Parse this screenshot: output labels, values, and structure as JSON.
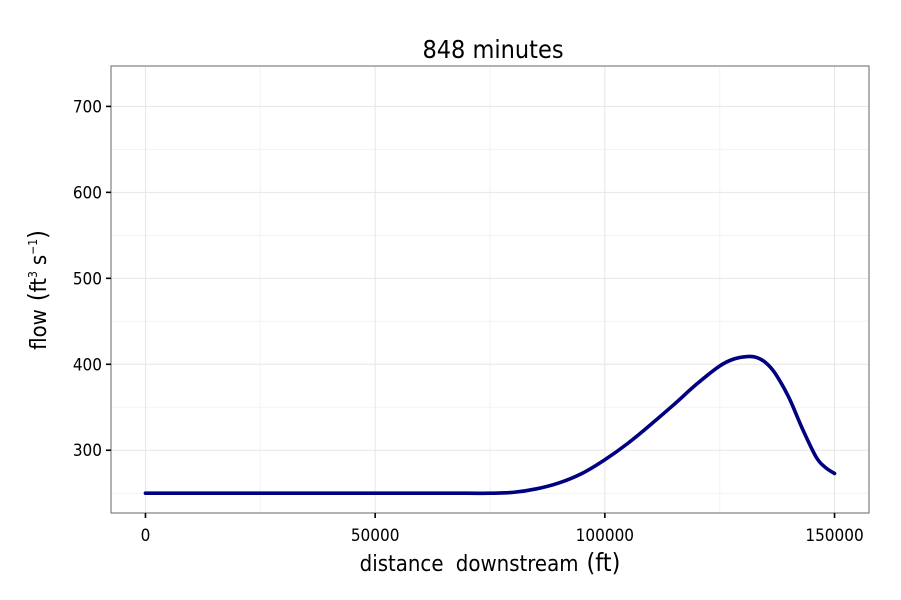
{
  "chart_data": {
    "type": "line",
    "title": "848 minutes",
    "xlabel_main": "distance downstream",
    "xlabel_unit": "(ft)",
    "ylabel_main": "flow",
    "ylabel_unit_base1": "ft",
    "ylabel_unit_exp1": "3",
    "ylabel_unit_base2": "s",
    "ylabel_unit_exp2": "−1",
    "xlim": [
      -7500,
      157500
    ],
    "ylim": [
      227,
      747
    ],
    "x_ticks": [
      0,
      50000,
      100000,
      150000
    ],
    "x_tick_labels": [
      "0",
      "50000",
      "100000",
      "150000"
    ],
    "y_ticks": [
      300,
      400,
      500,
      600,
      700
    ],
    "y_tick_labels": [
      "300",
      "400",
      "500",
      "600",
      "700"
    ],
    "grid": true,
    "line_color": "#000080",
    "series": [
      {
        "x": [
          0,
          10000,
          20000,
          30000,
          40000,
          50000,
          60000,
          70000,
          75000,
          80000,
          85000,
          90000,
          95000,
          100000,
          105000,
          110000,
          115000,
          120000,
          125000,
          128000,
          131000,
          133000,
          135000,
          137000,
          140000,
          143000,
          146000,
          148000,
          150000
        ],
        "y": [
          250,
          250,
          250,
          250,
          250,
          250,
          250,
          250,
          250,
          251,
          255,
          262,
          273,
          289,
          308,
          330,
          353,
          377,
          398,
          406,
          409,
          408,
          402,
          390,
          362,
          325,
          292,
          280,
          273
        ]
      }
    ]
  }
}
